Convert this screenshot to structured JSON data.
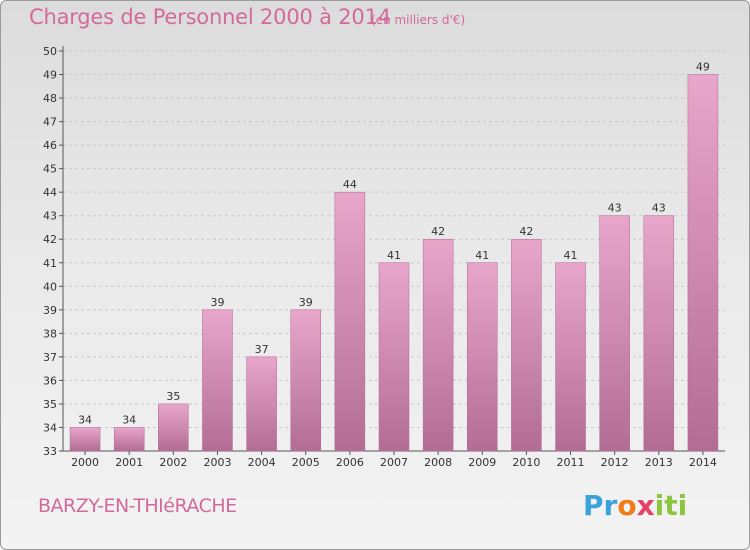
{
  "header": {
    "title": "Charges de Personnel 2000 à 2014",
    "unit": "(en milliers d'€)"
  },
  "footer": {
    "commune": "BARZY-EN-THIéRACHE",
    "logo": [
      "Pr",
      "o",
      "x",
      "iti"
    ]
  },
  "colors": {
    "title": "#d36a9b",
    "bar_top": "#e8a6cb",
    "bar_bottom": "#b36d95",
    "grid": "#c8c8c8"
  },
  "chart_data": {
    "type": "bar",
    "title": "Charges de Personnel 2000 à 2014",
    "xlabel": "",
    "ylabel": "",
    "categories": [
      "2000",
      "2001",
      "2002",
      "2003",
      "2004",
      "2005",
      "2006",
      "2007",
      "2008",
      "2009",
      "2010",
      "2011",
      "2012",
      "2013",
      "2014"
    ],
    "values": [
      34,
      34,
      35,
      39,
      37,
      39,
      44,
      41,
      42,
      41,
      42,
      41,
      43,
      43,
      49
    ],
    "ylim": [
      33,
      50
    ],
    "yticks": [
      33,
      34,
      35,
      36,
      37,
      38,
      39,
      40,
      41,
      42,
      43,
      44,
      45,
      46,
      47,
      48,
      49,
      50
    ],
    "grid": true,
    "legend": "none"
  }
}
